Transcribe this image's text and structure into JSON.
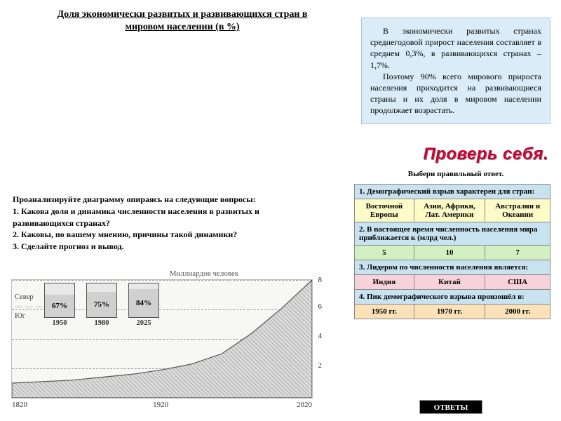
{
  "title": "Доля экономически развитых и развивающихся стран в мировом населении (в %)",
  "infobox": {
    "p1": "В экономически развитых странах среднегодовой прирост населения составляет в среднем 0,3%, в развивающихся странах – 1,7%.",
    "p2": "Поэтому 90% всего мирового прироста населения приходится на развивающиеся страны и их доля в мировом населении продолжает возрастать."
  },
  "check_self": "Проверь себя.",
  "pick_instruction": "Выбери правильный ответ.",
  "quiz": {
    "q1": "1. Демографический взрыв характерен для стран:",
    "q1_opts": [
      "Восточной Европы",
      "Азии, Африки, Лат. Америки",
      "Австралии и Океании"
    ],
    "q2": "2. В настоящее время численность населения мира приближается к (млрд чел.)",
    "q2_opts": [
      "5",
      "10",
      "7"
    ],
    "q3": "3. Лидером по численности населения является:",
    "q3_opts": [
      "Индия",
      "Китай",
      "США"
    ],
    "q4": "4. Пик демографического взрыва произошёл в:",
    "q4_opts": [
      "1950 гг.",
      "1970 гг.",
      "2000 гг."
    ]
  },
  "answers_button": "ОТВЕТЫ",
  "analyze": {
    "intro": "Проанализируйте диаграмму опираясь на следующие вопросы:",
    "l1": "1. Какова доля и динамика численности населения в развитых и развивающихся странах?",
    "l2": "2. Каковы, по вашему мнению, причины такой динамики?",
    "l3": "3. Сделайте прогноз и вывод."
  },
  "chart": {
    "y_unit_label": "Миллиардов человек",
    "type": "area-with-inset-bars",
    "xlim": [
      1820,
      2020
    ],
    "ylim": [
      0,
      8
    ],
    "ytick_step": 2,
    "yticks": [
      2,
      4,
      6,
      8
    ],
    "xticks": [
      1820,
      1920,
      2020
    ],
    "curve_points": [
      [
        1820,
        1.0
      ],
      [
        1860,
        1.2
      ],
      [
        1900,
        1.6
      ],
      [
        1920,
        1.9
      ],
      [
        1940,
        2.3
      ],
      [
        1960,
        3.0
      ],
      [
        1980,
        4.4
      ],
      [
        2000,
        6.1
      ],
      [
        2020,
        8.0
      ]
    ],
    "area_fill": "#c9c9c9",
    "curve_stroke": "#555555",
    "background": "#f7f7f5",
    "grid_style": "dashed",
    "grid_color": "#999999",
    "north_label": "Север",
    "south_label": "Юг",
    "inset_bars": [
      {
        "year": "1950",
        "south_pct": 67
      },
      {
        "year": "1980",
        "south_pct": 75
      },
      {
        "year": "2025",
        "south_pct": 84
      }
    ],
    "bar_top_color": "#e8e8e8",
    "bar_bot_color": "#d0d0d0",
    "bar_border": "#555555",
    "font_size_axis": 11
  }
}
